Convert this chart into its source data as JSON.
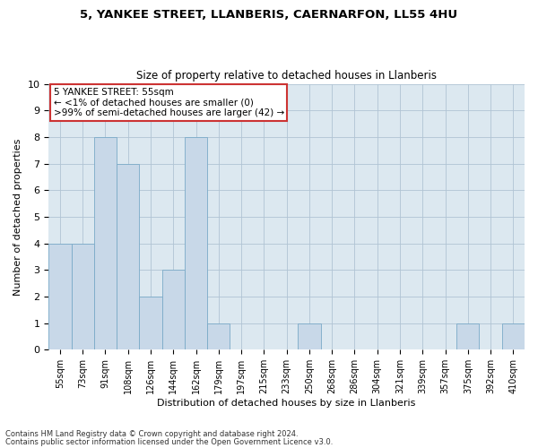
{
  "title1": "5, YANKEE STREET, LLANBERIS, CAERNARFON, LL55 4HU",
  "title2": "Size of property relative to detached houses in Llanberis",
  "xlabel": "Distribution of detached houses by size in Llanberis",
  "ylabel": "Number of detached properties",
  "categories": [
    "55sqm",
    "73sqm",
    "91sqm",
    "108sqm",
    "126sqm",
    "144sqm",
    "162sqm",
    "179sqm",
    "197sqm",
    "215sqm",
    "233sqm",
    "250sqm",
    "268sqm",
    "286sqm",
    "304sqm",
    "321sqm",
    "339sqm",
    "357sqm",
    "375sqm",
    "392sqm",
    "410sqm"
  ],
  "values": [
    4,
    4,
    8,
    7,
    2,
    3,
    8,
    1,
    0,
    0,
    0,
    1,
    0,
    0,
    0,
    0,
    0,
    0,
    1,
    0,
    1
  ],
  "bar_color": "#c8d8e8",
  "bar_edge_color": "#7aaac8",
  "ylim": [
    0,
    10
  ],
  "yticks": [
    0,
    1,
    2,
    3,
    4,
    5,
    6,
    7,
    8,
    9,
    10
  ],
  "annotation_box_text": "5 YANKEE STREET: 55sqm\n← <1% of detached houses are smaller (0)\n>99% of semi-detached houses are larger (42) →",
  "annotation_box_color": "#cc3333",
  "footnote1": "Contains HM Land Registry data © Crown copyright and database right 2024.",
  "footnote2": "Contains public sector information licensed under the Open Government Licence v3.0.",
  "bg_color": "#ffffff",
  "plot_bg_color": "#dce8f0",
  "grid_color": "#b0c4d4",
  "title_fontsize": 9.5,
  "subtitle_fontsize": 8.5,
  "tick_fontsize": 7,
  "label_fontsize": 8,
  "annot_fontsize": 7.5,
  "footnote_fontsize": 6
}
